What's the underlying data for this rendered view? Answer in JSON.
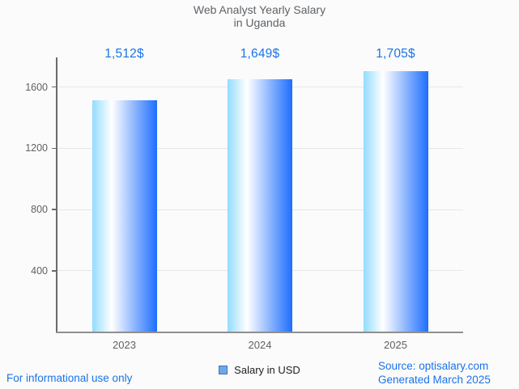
{
  "chart_data": {
    "type": "bar",
    "title": "Web Analyst Yearly Salary in Uganda",
    "title_lines": [
      "Web Analyst Yearly Salary",
      "in Uganda"
    ],
    "categories": [
      "2023",
      "2024",
      "2025"
    ],
    "series": [
      {
        "name": "Salary in USD",
        "values": [
          1512,
          1649,
          1705
        ]
      }
    ],
    "value_labels": [
      "1,512$",
      "1,649$",
      "1,705$"
    ],
    "y_ticks": [
      400,
      800,
      1200,
      1600
    ],
    "y_tick_labels": [
      "400",
      "800",
      "1200",
      "1600"
    ],
    "ylim": [
      0,
      1800
    ],
    "xlabel": "",
    "ylabel": "",
    "grid": true,
    "legend_position": "bottom"
  },
  "colors": {
    "background": "#fbfbfb",
    "title_text": "#5f6368",
    "axis_line": "#6b6b6b",
    "baseline": "#8f8f8f",
    "gridline": "#e7e7e7",
    "tick_text": "#616161",
    "value_label_text": "#1a73e8",
    "footer_text": "#1a73e8",
    "legend_swatch_fill": "#6ca9e9",
    "legend_swatch_border": "#4272b8",
    "bar_gradient_left": "#93dcfe",
    "bar_gradient_mid": "#ffffff",
    "bar_gradient_right": "#1e6efe"
  },
  "footer": {
    "left_note": "For informational use only",
    "source": "Source: optisalary.com",
    "generated": "Generated March 2025"
  }
}
